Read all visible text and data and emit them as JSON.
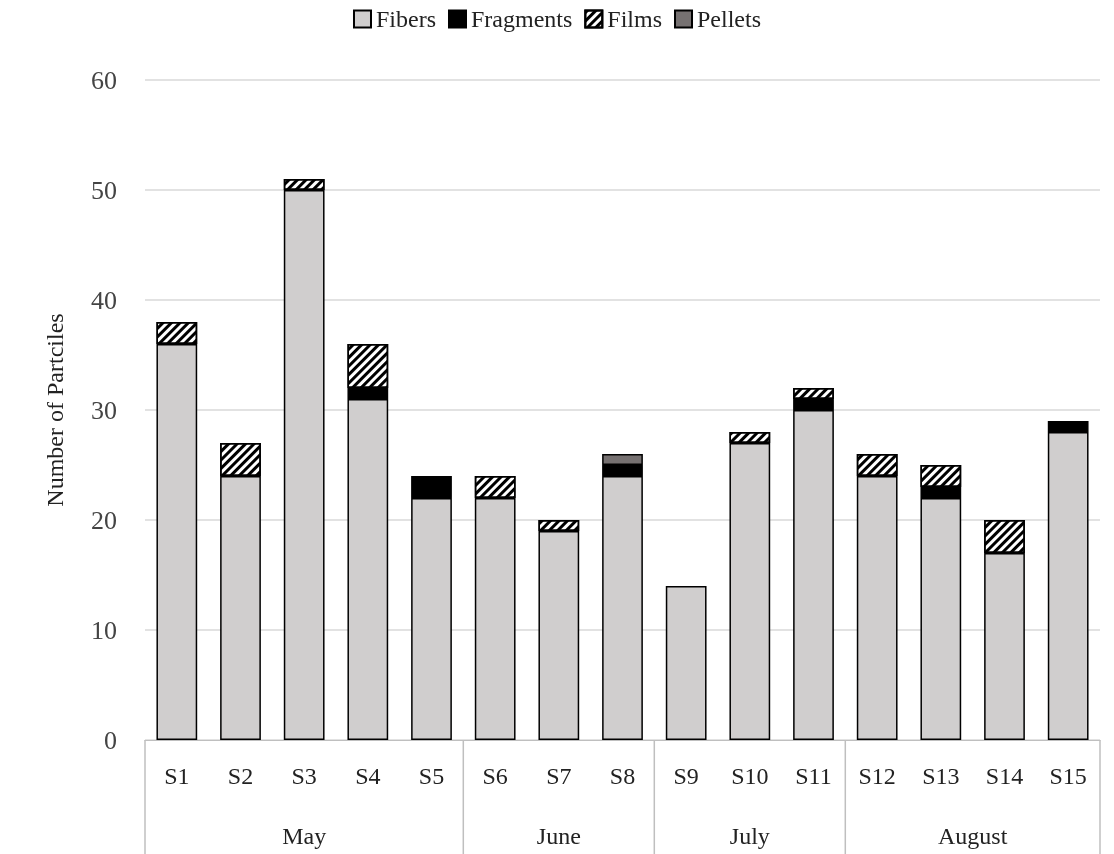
{
  "chart_data": {
    "type": "bar",
    "stacked": true,
    "ylabel": "Number of Partciles",
    "categories": [
      "S1",
      "S2",
      "S3",
      "S4",
      "S5",
      "S6",
      "S7",
      "S8",
      "S9",
      "S10",
      "S11",
      "S12",
      "S13",
      "S14",
      "S15"
    ],
    "series": [
      {
        "name": "Fibers",
        "color": "#d0cece",
        "values": [
          36,
          24,
          50,
          31,
          22,
          22,
          19,
          24,
          14,
          27,
          30,
          24,
          22,
          17,
          28
        ]
      },
      {
        "name": "Fragments",
        "color": "#000000",
        "values": [
          null,
          null,
          null,
          1,
          2,
          null,
          null,
          1,
          null,
          null,
          1,
          null,
          1,
          null,
          1
        ]
      },
      {
        "name": "Films",
        "color": "#ffffff",
        "values": [
          2,
          3,
          1,
          4,
          null,
          2,
          1,
          null,
          null,
          1,
          1,
          2,
          2,
          3,
          null
        ]
      },
      {
        "name": "Pellets",
        "color": "#767171",
        "values": [
          null,
          null,
          null,
          null,
          null,
          null,
          null,
          1,
          null,
          null,
          null,
          null,
          null,
          null,
          null
        ]
      }
    ],
    "annotations": [
      "May",
      "June",
      "July",
      "August"
    ],
    "ylim": [
      0,
      60
    ],
    "yticks": [
      0,
      10,
      20,
      30,
      40,
      50,
      60
    ],
    "grid": "y",
    "legend": "top"
  }
}
